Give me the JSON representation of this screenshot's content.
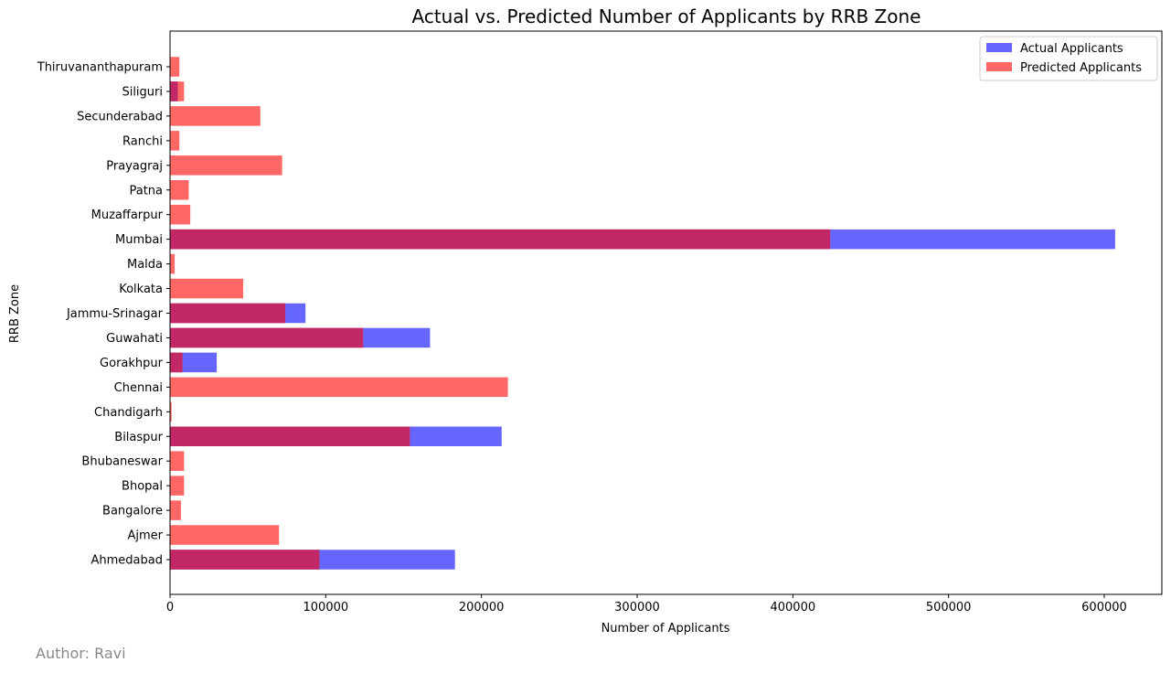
{
  "chart_data": {
    "type": "bar",
    "orientation": "horizontal",
    "title": "Actual vs. Predicted Number of Applicants by RRB Zone",
    "xlabel": "Number of Applicants",
    "ylabel": "RRB Zone",
    "xlim": [
      0,
      637000
    ],
    "xticks": [
      0,
      100000,
      200000,
      300000,
      400000,
      500000,
      600000
    ],
    "grid": false,
    "legend_position": "top-right",
    "categories": [
      "Ahmedabad",
      "Ajmer",
      "Bangalore",
      "Bhopal",
      "Bhubaneswar",
      "Bilaspur",
      "Chandigarh",
      "Chennai",
      "Gorakhpur",
      "Guwahati",
      "Jammu-Srinagar",
      "Kolkata",
      "Malda",
      "Mumbai",
      "Muzaffarpur",
      "Patna",
      "Prayagraj",
      "Ranchi",
      "Secunderabad",
      "Siliguri",
      "Thiruvananthapuram"
    ],
    "series": [
      {
        "name": "Actual Applicants",
        "color": "#6666ff",
        "values": [
          183000,
          0,
          0,
          0,
          0,
          213000,
          0,
          0,
          30000,
          167000,
          87000,
          0,
          0,
          607000,
          0,
          0,
          0,
          0,
          0,
          5000,
          0
        ]
      },
      {
        "name": "Predicted Applicants",
        "color": "#ff6666",
        "values": [
          96000,
          70000,
          7000,
          9000,
          9000,
          154000,
          1000,
          217000,
          8000,
          124000,
          74000,
          47000,
          3000,
          424000,
          13000,
          12000,
          72000,
          6000,
          58000,
          9000,
          6000
        ]
      }
    ],
    "overlap_color": "#c12866"
  },
  "footer": {
    "author": "Author: Ravi"
  }
}
